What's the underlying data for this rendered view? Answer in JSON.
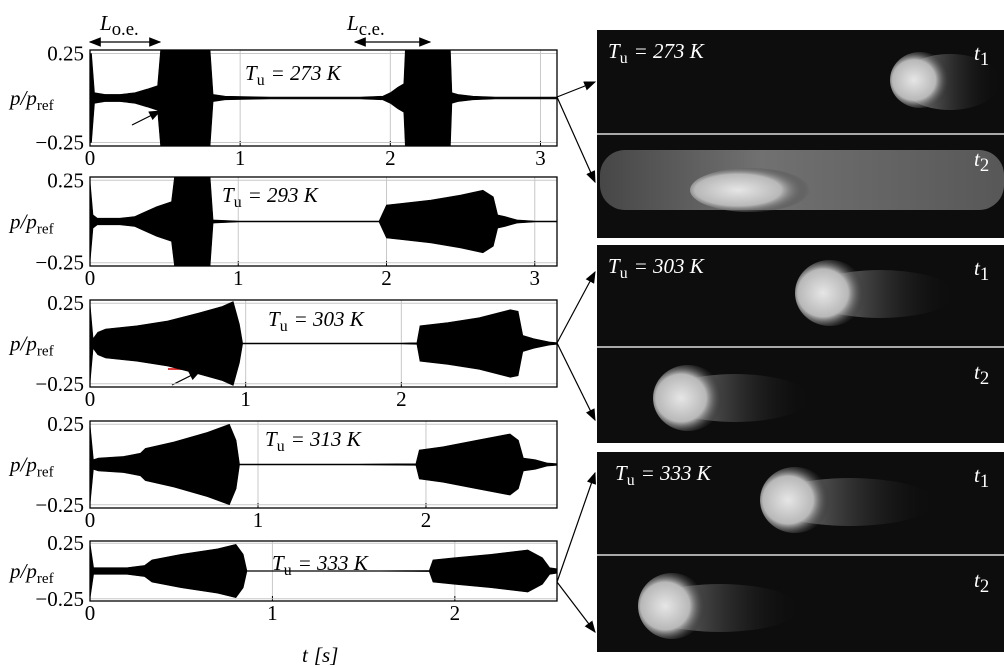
{
  "chart_data": [
    {
      "type": "area",
      "title": {
        "symbol": "T",
        "sub": "u",
        "text": "= 273 K"
      },
      "ylabel": {
        "symbol": "p/p",
        "sub": "ref"
      },
      "top_labels": [
        {
          "symbol": "L",
          "sub": "o.e."
        },
        {
          "symbol": "L",
          "sub": "c.e."
        }
      ],
      "x": [
        0,
        0.01,
        0.03,
        0.1,
        0.2,
        0.3,
        0.38,
        0.45,
        0.47,
        0.5,
        0.6,
        0.7,
        0.78,
        0.8,
        0.82,
        0.9,
        1.2,
        1.5,
        1.8,
        1.95,
        2.0,
        2.05,
        2.09,
        2.1,
        2.2,
        2.3,
        2.4,
        2.41,
        2.45,
        2.55,
        2.7,
        3.0,
        3.11
      ],
      "values": [
        0.25,
        0.25,
        0.03,
        0.02,
        0.02,
        0.03,
        0.05,
        0.07,
        0.27,
        0.27,
        0.27,
        0.27,
        0.27,
        0.27,
        0.02,
        0.01,
        0.005,
        0.005,
        0.005,
        0.01,
        0.03,
        0.06,
        0.08,
        0.27,
        0.27,
        0.27,
        0.27,
        0.03,
        0.02,
        0.01,
        0.005,
        0.005,
        0.005
      ],
      "color": "#000000",
      "xlim": [
        0,
        3.11
      ],
      "xticks": [
        0,
        1,
        2,
        3
      ],
      "ylim": [
        -0.27,
        0.27
      ],
      "yticks": [
        {
          "value": -0.25,
          "label": "−0.25"
        },
        0.25
      ],
      "grid": true
    },
    {
      "type": "area",
      "title": {
        "symbol": "T",
        "sub": "u",
        "text": "= 293 K"
      },
      "ylabel": {
        "symbol": "p/p",
        "sub": "ref"
      },
      "x": [
        0,
        0.02,
        0.05,
        0.2,
        0.3,
        0.35,
        0.45,
        0.55,
        0.57,
        0.65,
        0.75,
        0.81,
        0.83,
        1.0,
        1.5,
        1.95,
        2.0,
        2.1,
        2.3,
        2.5,
        2.65,
        2.72,
        2.75,
        2.8,
        2.88,
        3.0,
        3.15
      ],
      "values": [
        0.25,
        0.04,
        0.02,
        0.02,
        0.03,
        0.05,
        0.09,
        0.12,
        0.27,
        0.27,
        0.27,
        0.27,
        0.01,
        0.003,
        0.003,
        0.003,
        0.1,
        0.11,
        0.13,
        0.16,
        0.19,
        0.15,
        0.04,
        0.03,
        0.01,
        0.003,
        0.003
      ],
      "color": "#000000",
      "xlim": [
        0,
        3.15
      ],
      "xticks": [
        0,
        1,
        2,
        3
      ],
      "ylim": [
        -0.27,
        0.27
      ],
      "yticks": [
        {
          "value": -0.25,
          "label": "−0.25"
        },
        0.25
      ],
      "grid": true
    },
    {
      "type": "area",
      "title": {
        "symbol": "T",
        "sub": "u",
        "text": "= 303 K"
      },
      "ylabel": {
        "symbol": "p/p",
        "sub": "ref"
      },
      "x": [
        0,
        0.02,
        0.05,
        0.1,
        0.3,
        0.5,
        0.7,
        0.85,
        0.92,
        0.96,
        0.98,
        1.2,
        1.6,
        2.0,
        2.1,
        2.12,
        2.3,
        2.5,
        2.7,
        2.75,
        2.78,
        2.85,
        2.95,
        3.0
      ],
      "values": [
        0.25,
        0.03,
        0.07,
        0.09,
        0.11,
        0.14,
        0.19,
        0.23,
        0.26,
        0.12,
        0.003,
        0.003,
        0.003,
        0.003,
        0.005,
        0.11,
        0.13,
        0.16,
        0.21,
        0.2,
        0.05,
        0.03,
        0.01,
        0.005
      ],
      "color": "#000000",
      "xlim": [
        0,
        3.0
      ],
      "xticks": [
        0,
        1,
        2
      ],
      "ylim": [
        -0.27,
        0.27
      ],
      "yticks": [
        {
          "value": -0.25,
          "label": "−0.25"
        },
        0.25
      ],
      "grid": true
    },
    {
      "type": "area",
      "title": {
        "symbol": "T",
        "sub": "u",
        "text": "= 313 K"
      },
      "ylabel": {
        "symbol": "p/p",
        "sub": "ref"
      },
      "x": [
        0,
        0.02,
        0.05,
        0.2,
        0.3,
        0.33,
        0.5,
        0.7,
        0.83,
        0.87,
        0.89,
        1.2,
        1.6,
        1.94,
        1.96,
        2.1,
        2.3,
        2.5,
        2.55,
        2.58,
        2.65,
        2.72,
        2.78
      ],
      "values": [
        0.25,
        0.03,
        0.04,
        0.05,
        0.07,
        0.1,
        0.14,
        0.2,
        0.25,
        0.15,
        0.003,
        0.003,
        0.003,
        0.005,
        0.09,
        0.11,
        0.15,
        0.19,
        0.15,
        0.04,
        0.03,
        0.01,
        0.005
      ],
      "color": "#000000",
      "xlim": [
        0,
        2.78
      ],
      "xticks": [
        0,
        1,
        2
      ],
      "ylim": [
        -0.27,
        0.27
      ],
      "yticks": [
        {
          "value": -0.25,
          "label": "−0.25"
        },
        0.25
      ],
      "grid": true
    },
    {
      "type": "area",
      "title": {
        "symbol": "T",
        "sub": "u",
        "text": "= 333 K"
      },
      "ylabel": {
        "symbol": "p/p",
        "sub": "ref"
      },
      "xlabel": {
        "symbol": "t",
        "text": "[s]"
      },
      "x": [
        0,
        0.02,
        0.05,
        0.2,
        0.3,
        0.34,
        0.5,
        0.7,
        0.8,
        0.84,
        0.86,
        1.2,
        1.6,
        1.86,
        1.88,
        2.0,
        2.2,
        2.4,
        2.48,
        2.52,
        2.56
      ],
      "values": [
        0.25,
        0.03,
        0.03,
        0.03,
        0.05,
        0.1,
        0.15,
        0.2,
        0.24,
        0.15,
        0.003,
        0.003,
        0.003,
        0.005,
        0.1,
        0.12,
        0.15,
        0.19,
        0.12,
        0.03,
        0.02
      ],
      "color": "#000000",
      "xlim": [
        0,
        2.56
      ],
      "xticks": [
        0,
        1,
        2
      ],
      "ylim": [
        -0.27,
        0.27
      ],
      "yticks": [
        {
          "value": -0.25,
          "label": "−0.25"
        },
        0.25
      ],
      "grid": true
    }
  ],
  "panels": [
    {
      "label": {
        "symbol": "T",
        "sub": "u",
        "text": "= 273 K"
      },
      "t1": {
        "symbol": "t",
        "sub": "1"
      },
      "t2": {
        "symbol": "t",
        "sub": "2"
      }
    },
    {
      "label": {
        "symbol": "T",
        "sub": "u",
        "text": "= 303 K"
      },
      "t1": {
        "symbol": "t",
        "sub": "1"
      },
      "t2": {
        "symbol": "t",
        "sub": "2"
      }
    },
    {
      "label": {
        "symbol": "T",
        "sub": "u",
        "text": "= 333 K"
      },
      "t1": {
        "symbol": "t",
        "sub": "1"
      },
      "t2": {
        "symbol": "t",
        "sub": "2"
      }
    }
  ]
}
